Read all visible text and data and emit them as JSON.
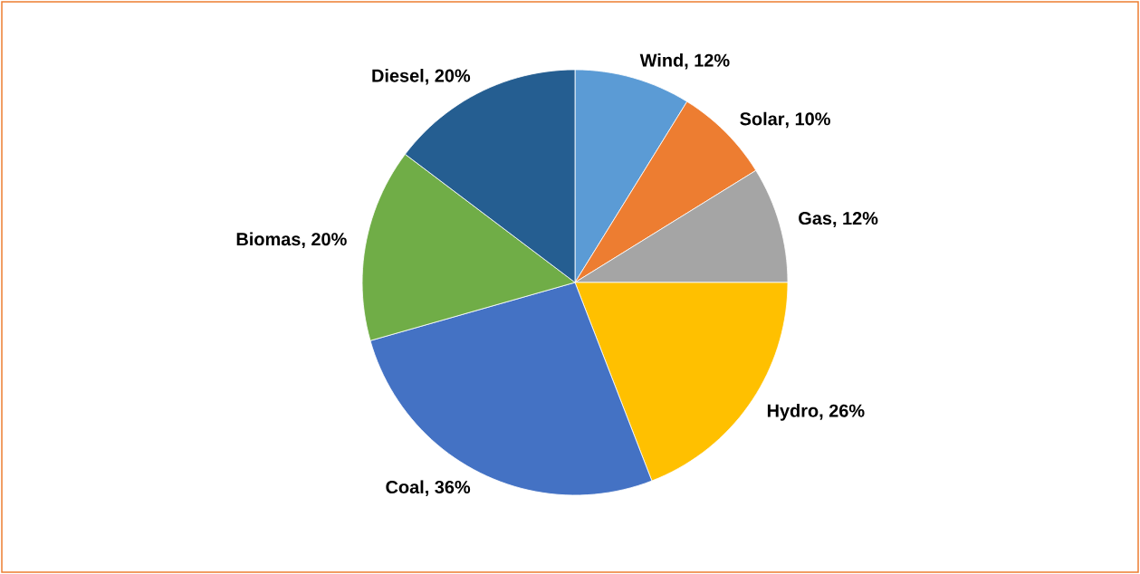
{
  "chart_data": {
    "type": "pie",
    "categories": [
      "Wind",
      "Solar",
      "Gas",
      "Hydro",
      "Coal",
      "Biomas",
      "Diesel"
    ],
    "values": [
      12,
      10,
      12,
      26,
      36,
      20,
      20
    ],
    "value_labels": [
      ", 12%",
      ", 10%",
      ", 12%",
      ", 26%",
      ", 36%",
      ", 20%",
      ", 20%"
    ],
    "colors": [
      "#5b9bd5",
      "#ed7d31",
      "#a5a5a5",
      "#ffc000",
      "#4472c4",
      "#70ad47",
      "#255e91"
    ]
  }
}
